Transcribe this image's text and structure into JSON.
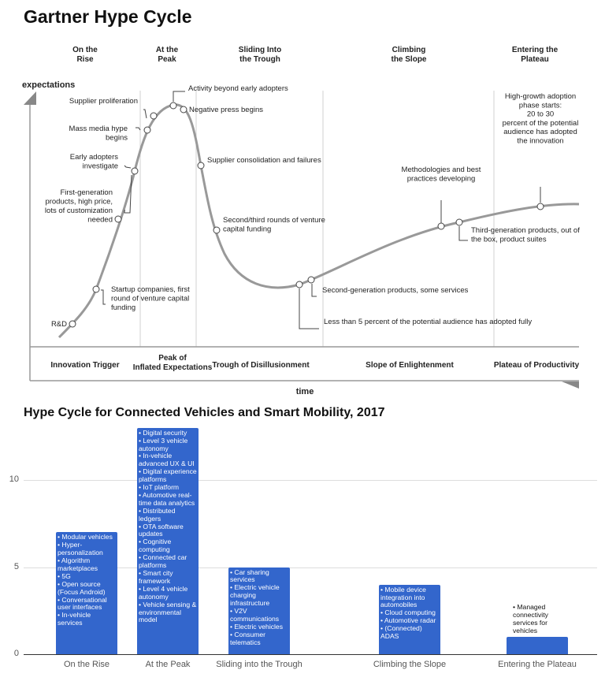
{
  "title": "Gartner Hype Cycle",
  "hype_cycle": {
    "top_phases": [
      "On the\nRise",
      "At the\nPeak",
      "Sliding Into\nthe Trough",
      "Climbing\nthe Slope",
      "Entering the\nPlateau"
    ],
    "bottom_phases": [
      "Innovation Trigger",
      "Peak of\nInflated Expectations",
      "Trough of Disillusionment",
      "Slope of Enlightenment",
      "Plateau of Productivity"
    ],
    "y_axis_label": "expectations",
    "x_axis_label": "time",
    "annotations": {
      "rd": "R&D",
      "startup": "Startup companies, first\nround of venture capital\nfunding",
      "first_gen": "First-generation\nproducts, high price,\nlots of customization\nneeded",
      "early_adopters": "Early adopters\ninvestigate",
      "mass_media": "Mass media hype\nbegins",
      "supplier_prolif": "Supplier proliferation",
      "activity": "Activity beyond early adopters",
      "negative_press": "Negative press begins",
      "consolidation": "Supplier consolidation and failures",
      "second_third": "Second/third rounds of venture\ncapital funding",
      "less_than_5": "Less than 5 percent of the potential audience has adopted fully",
      "second_gen": "Second-generation products, some services",
      "methodologies": "Methodologies and best\npractices developing",
      "third_gen": "Third-generation products, out of\nthe box, product suites",
      "high_growth": "High-growth adoption\nphase starts:\n20 to 30\npercent of the potential\naudience has adopted\nthe innovation"
    },
    "colors": {
      "curve": "#999999",
      "lines": "#cccccc"
    }
  },
  "chart_data": {
    "type": "bar",
    "title": "Hype Cycle for Connected Vehicles and Smart Mobility, 2017",
    "categories": [
      "On the Rise",
      "At the Peak",
      "Sliding into the Trough",
      "Climbing the Slope",
      "Entering the Plateau"
    ],
    "values": [
      7,
      13,
      5,
      4,
      1
    ],
    "yticks": [
      0,
      5,
      10
    ],
    "ylim": [
      0,
      13
    ],
    "grid": true,
    "bar_color": "#3366cc",
    "data_labels": [
      "• Modular vehicles\n• Hyper-personalization\n• Algorithm marketplaces\n• 5G\n• Open source (Focus Android)\n• Conversational user interfaces\n• In-vehicle services",
      "• Digital security\n• Level 3 vehicle autonomy\n• In-vehicle advanced UX & UI\n• Digital experience platforms\n• IoT platform\n• Automotive real-time data analytics\n• Distributed ledgers\n• OTA software updates\n• Cognitive computing\n• Connected car platforms\n• Smart city framework\n• Level 4 vehicle autonomy\n• Vehicle sensing & environmental model",
      "• Car sharing services\n• Electric vehicle charging infrastructure\n• V2V communications\n• Electric vehicles\n• Consumer telematics",
      "• Mobile device integration into automobiles\n• Cloud computing\n• Automotive radar\n• (Connected) ADAS",
      "• Managed connectivity services for vehicles"
    ]
  }
}
